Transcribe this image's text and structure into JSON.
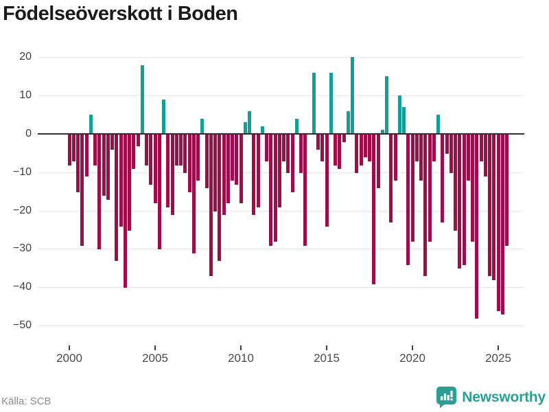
{
  "title": "Födelseöverskott i Boden",
  "source_label": "Källa: SCB",
  "brand": {
    "name": "Newsworthy"
  },
  "colors": {
    "positive": "#149e9a",
    "negative": "#9e0c49",
    "grid": "#e8e8e8",
    "zero_line": "#2f2f2f",
    "title_text": "#1a1a1a",
    "axis_text": "#4a4a4a",
    "source_text": "#8c8c8c",
    "brand_teal": "#2c9f94"
  },
  "chart_data": {
    "type": "bar",
    "title": "Födelseöverskott i Boden",
    "frequency": "quarterly",
    "start_year": 2000,
    "start_quarter": 1,
    "end_year": 2025,
    "end_quarter": 3,
    "ylim": [
      -50,
      20
    ],
    "grid": true,
    "y_ticks": [
      20,
      10,
      0,
      -10,
      -20,
      -30,
      -40,
      -50
    ],
    "x_tick_labels": [
      "2000",
      "2005",
      "2010",
      "2015",
      "2020",
      "2025"
    ],
    "values": [
      -8,
      -7,
      -15,
      -29,
      -11,
      5,
      -8,
      -30,
      -16,
      -17,
      -4,
      -33,
      -24,
      -40,
      -25,
      -9,
      -3,
      18,
      -8,
      -13,
      -18,
      -30,
      9,
      -19,
      -21,
      -8,
      -8,
      -10,
      -15,
      -31,
      -12,
      4,
      -14,
      -37,
      -20,
      -33,
      -21,
      -18,
      -12,
      -13,
      -18,
      3,
      6,
      -21,
      -19,
      2,
      -7,
      -29,
      -28,
      -19,
      -7,
      -10,
      -15,
      4,
      -10,
      -29,
      0,
      16,
      -4,
      -7,
      -24,
      16,
      -8,
      -9,
      -2,
      6,
      20,
      -10,
      -8,
      -6,
      -7,
      -39,
      -14,
      1,
      15,
      -23,
      -12,
      10,
      7,
      -34,
      -28,
      -7,
      -12,
      -37,
      -28,
      -7,
      5,
      -23,
      -5,
      -10,
      -25,
      -35,
      -34,
      -12,
      -28,
      -48,
      -7,
      -11,
      -37,
      -38,
      -46,
      -47,
      -29
    ]
  }
}
